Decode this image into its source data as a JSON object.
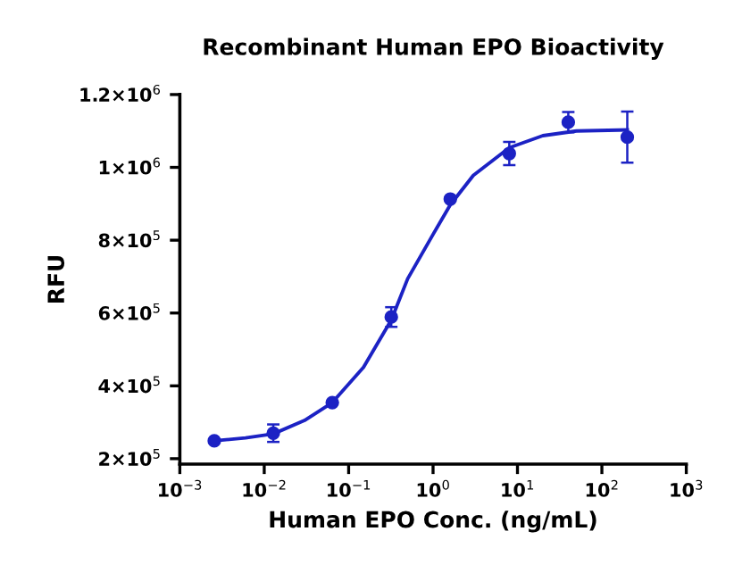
{
  "chart_data": {
    "type": "scatter",
    "title": "Recombinant Human EPO Bioactivity",
    "xlabel": "Human EPO Conc. (ng/mL)",
    "ylabel": "RFU",
    "log": "x",
    "grid": false,
    "xlim": [
      0.001,
      1000
    ],
    "xticks": [
      {
        "value": 0.001,
        "label": "10$^{−3}$"
      },
      {
        "value": 0.01,
        "label": "10$^{−2}$"
      },
      {
        "value": 0.1,
        "label": "10$^{−1}$"
      },
      {
        "value": 1,
        "label": "10$^{0}$"
      },
      {
        "value": 10,
        "label": "10$^{1}$"
      },
      {
        "value": 100,
        "label": "10$^{2}$"
      },
      {
        "value": 1000,
        "label": "10$^{3}$"
      }
    ],
    "ylim": [
      185000,
      1200000
    ],
    "yticks": [
      {
        "value": 200000,
        "label": "2×10$^{5}$"
      },
      {
        "value": 400000,
        "label": "4×10$^{5}$"
      },
      {
        "value": 600000,
        "label": "6×10$^{5}$"
      },
      {
        "value": 800000,
        "label": "8×10$^{5}$"
      },
      {
        "value": 1000000,
        "label": "1×10$^{6}$"
      },
      {
        "value": 1200000,
        "label": "1.2×10$^{6}$"
      }
    ],
    "series": [
      {
        "color": "#1c22c4",
        "marker": "circle",
        "x": [
          0.00256,
          0.0128,
          0.064,
          0.32,
          1.6,
          8,
          40,
          200
        ],
        "values": [
          249000,
          270000,
          354000,
          589000,
          913000,
          1038000,
          1124000,
          1083000
        ],
        "errors": [
          null,
          24000,
          null,
          27000,
          null,
          32000,
          28000,
          70000
        ]
      },
      {
        "type": "line",
        "color": "#1c22c4",
        "marker": "none",
        "line_style": "solid",
        "x": [
          0.00256,
          0.006,
          0.0128,
          0.03,
          0.064,
          0.15,
          0.32,
          0.5,
          1,
          1.6,
          3,
          8,
          20,
          50,
          200
        ],
        "values": [
          249000,
          257000,
          268000,
          305000,
          354000,
          451000,
          581000,
          694000,
          816000,
          897000,
          978000,
          1054000,
          1087000,
          1100000,
          1103000
        ]
      }
    ]
  }
}
